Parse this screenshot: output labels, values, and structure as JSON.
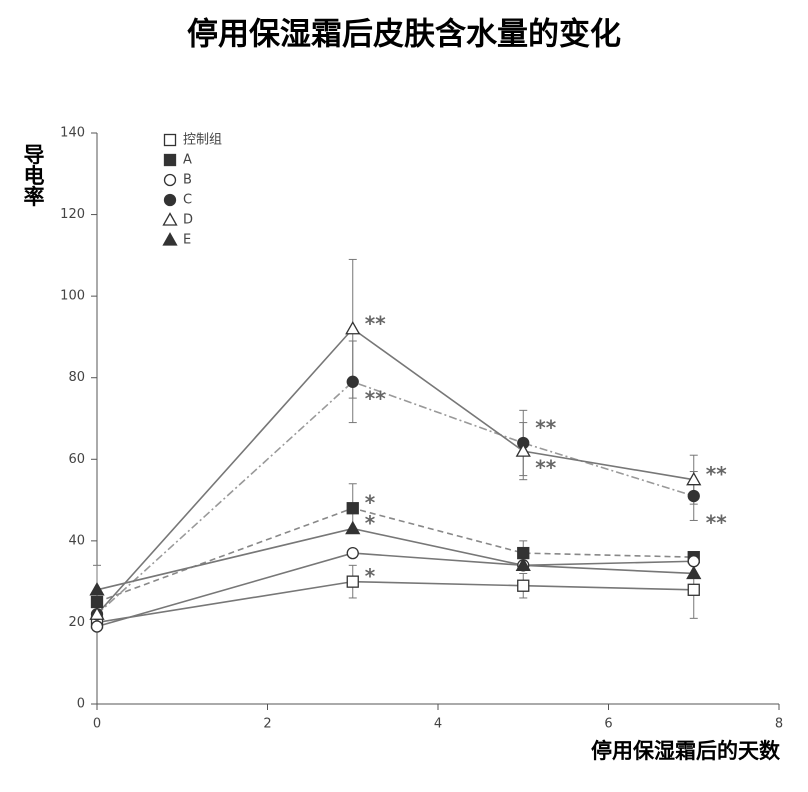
{
  "chart_data": {
    "type": "line",
    "title": "停用保湿霜后皮肤含水量的变化",
    "y_label": "导电率",
    "x_label": "停用保湿霜后的天数",
    "x": [
      0,
      3,
      5,
      7
    ],
    "xlim": [
      0,
      8
    ],
    "xticks": [
      0,
      2,
      4,
      6,
      8
    ],
    "ylim": [
      0,
      140
    ],
    "yticks": [
      0,
      20,
      40,
      60,
      80,
      100,
      120,
      140
    ],
    "series": [
      {
        "name": "控制组",
        "marker": "square",
        "filled": false,
        "dash": "solid",
        "color": "#777777",
        "values": [
          20,
          30,
          29,
          28
        ],
        "errors": [
          null,
          4,
          3,
          7
        ],
        "significance": [
          null,
          "*",
          null,
          null
        ]
      },
      {
        "name": "A",
        "marker": "square",
        "filled": true,
        "dash": "dashed",
        "color": "#888888",
        "values": [
          25,
          48,
          37,
          36
        ],
        "errors": [
          null,
          6,
          3,
          null
        ],
        "significance": [
          null,
          "*",
          null,
          null
        ]
      },
      {
        "name": "B",
        "marker": "circle",
        "filled": false,
        "dash": "solid",
        "color": "#777777",
        "values": [
          19,
          37,
          34,
          35
        ],
        "errors": [
          null,
          null,
          null,
          null
        ],
        "significance": [
          null,
          null,
          null,
          null
        ]
      },
      {
        "name": "C",
        "marker": "circle",
        "filled": true,
        "dash": "dashdot",
        "color": "#999999",
        "values": [
          22,
          79,
          64,
          51
        ],
        "errors": [
          null,
          10,
          8,
          6
        ],
        "significance": [
          null,
          "**",
          "**",
          "**"
        ]
      },
      {
        "name": "D",
        "marker": "triangle",
        "filled": false,
        "dash": "solid",
        "color": "#777777",
        "values": [
          22,
          92,
          62,
          55
        ],
        "errors": [
          null,
          17,
          7,
          6
        ],
        "significance": [
          null,
          "**",
          "**",
          "**"
        ]
      },
      {
        "name": "E",
        "marker": "triangle",
        "filled": true,
        "dash": "solid",
        "color": "#777777",
        "values": [
          28,
          43,
          34,
          32
        ],
        "errors": [
          6,
          null,
          null,
          null
        ],
        "significance": [
          null,
          "*",
          null,
          null
        ]
      }
    ]
  }
}
